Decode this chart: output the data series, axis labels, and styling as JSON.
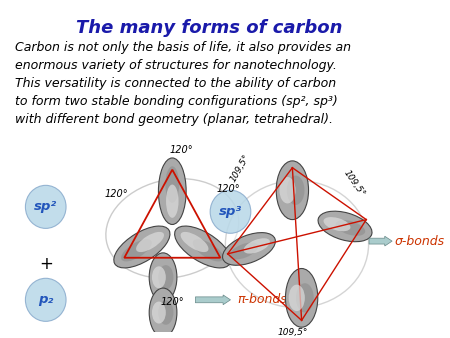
{
  "title": "The many forms of carbon",
  "title_color": "#1a1aaa",
  "title_fontsize": 13,
  "body_text": "Carbon is not only the basis of life, it also provides an\nenormous variety of structures for nanotechnology.\nThis versatility is connected to the ability of carbon\nto form two stable bonding configurations (sp², sp³)\nwith different bond geometry (planar, tetrahedral).",
  "body_fontsize": 9.0,
  "sp2_label": "sp²",
  "sp3_label": "sp³",
  "pz_label": "p₂",
  "sigma_label": "σ-bonds",
  "pi_label": "π-bonds",
  "angle_120": "120°",
  "angle_1095": "109,5°",
  "label_color": "#2255bb",
  "bond_color": "#cc1100",
  "sigma_pi_color": "#cc3300",
  "bg_color": "#ffffff",
  "circle_color": "#b8d8e8",
  "circle_alpha": 0.55,
  "lobe_dark": "#888888",
  "lobe_mid": "#aaaaaa",
  "lobe_light": "#dddddd",
  "lobe_edge": "#444444"
}
